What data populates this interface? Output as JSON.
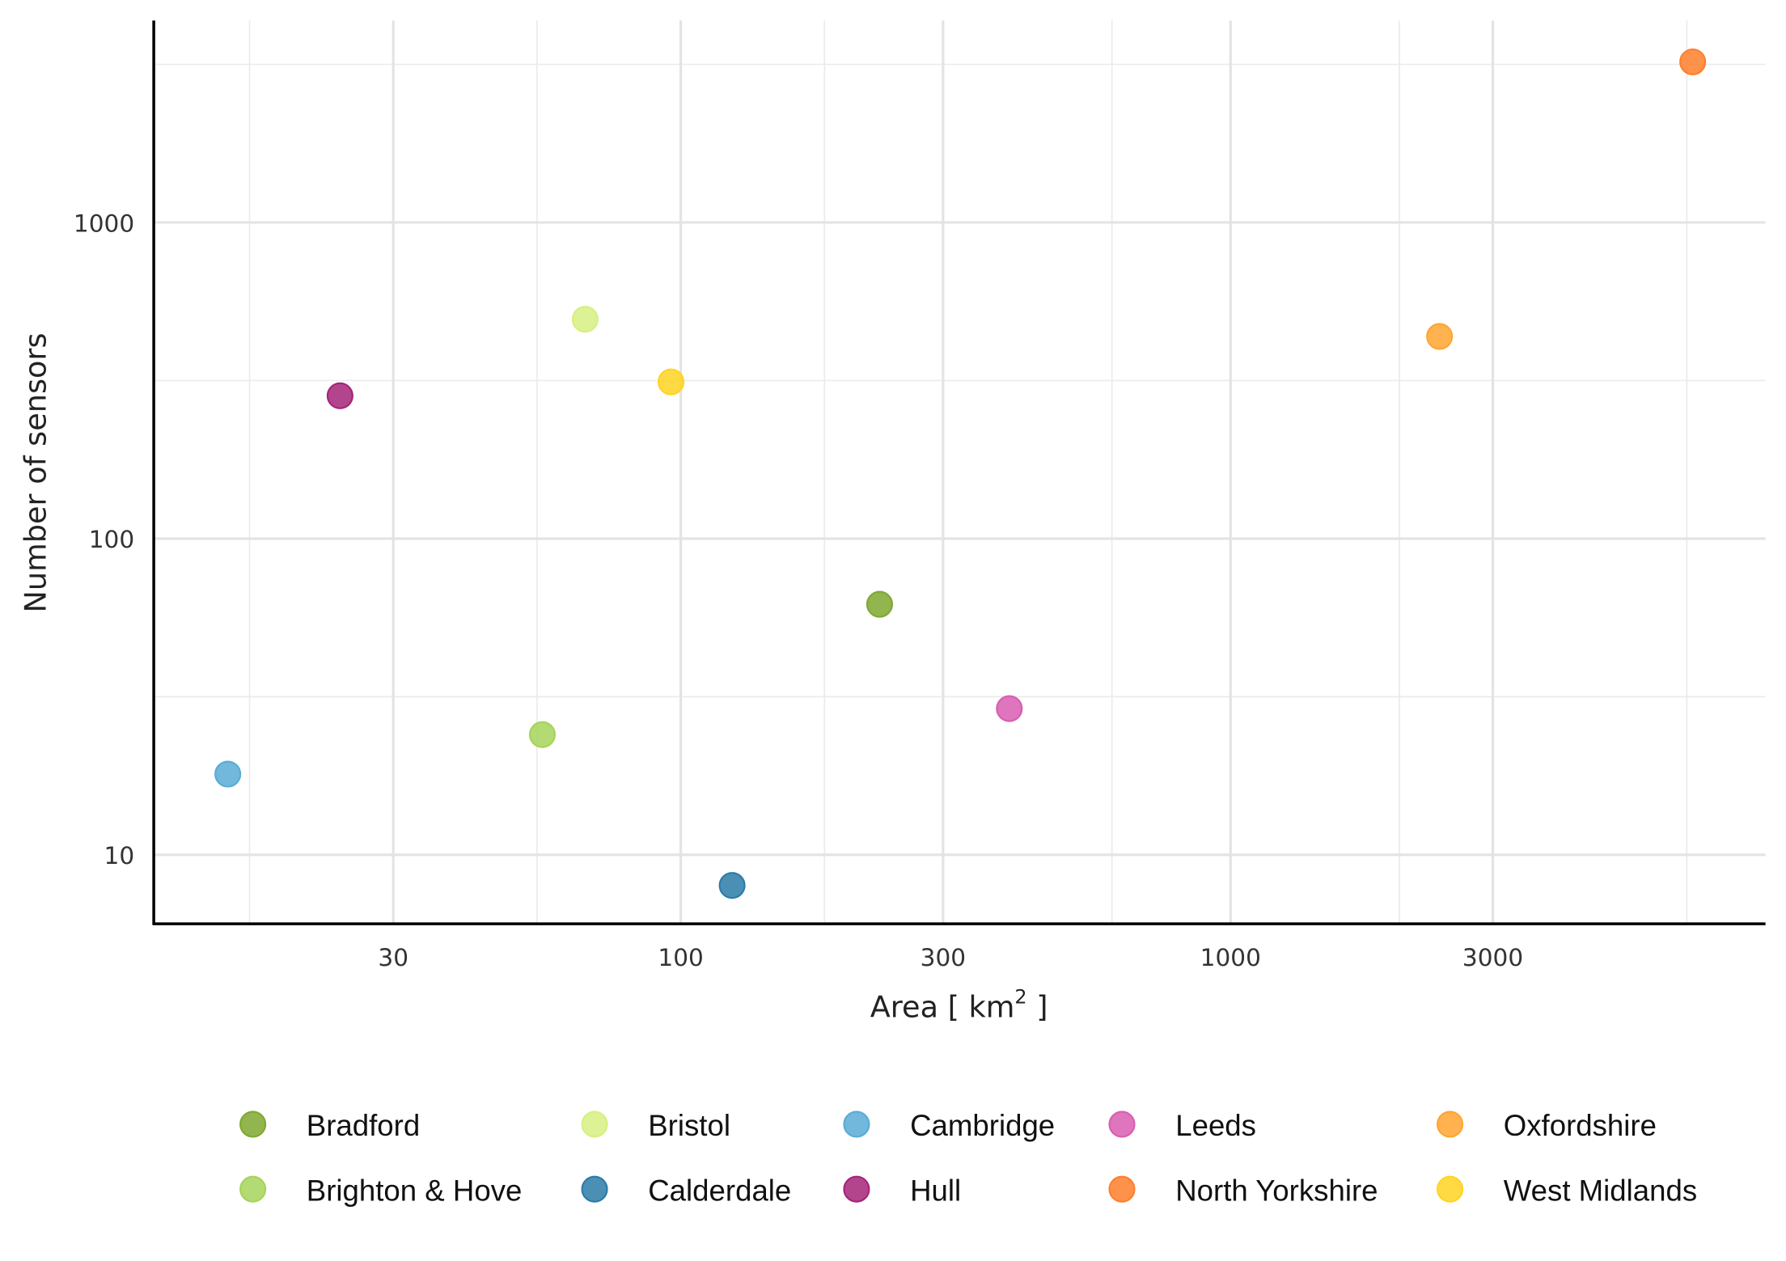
{
  "chart_data": {
    "type": "scatter",
    "xlabel": "Area [ km",
    "xlabel_sup": "2",
    "xlabel_end": " ]",
    "ylabel": "Number of sensors",
    "x_scale": "log10",
    "y_scale": "log10",
    "xlim": [
      11,
      9400
    ],
    "ylim": [
      6,
      4350
    ],
    "x_ticks": [
      30,
      100,
      300,
      1000,
      3000
    ],
    "x_tick_labels": [
      "30",
      "100",
      "300",
      "1000",
      "3000"
    ],
    "y_ticks": [
      10,
      100,
      1000
    ],
    "y_tick_labels": [
      "10",
      "100",
      "1000"
    ],
    "grid": true,
    "legend_position": "bottom",
    "points": [
      {
        "name": "Bradford",
        "x": 230,
        "y": 62,
        "color": "#7fa830"
      },
      {
        "name": "Brighton & Hove",
        "x": 56,
        "y": 24,
        "color": "#a6d35a"
      },
      {
        "name": "Bristol",
        "x": 67,
        "y": 494,
        "color": "#d6f081"
      },
      {
        "name": "Calderdale",
        "x": 124,
        "y": 8,
        "color": "#2b7ba8"
      },
      {
        "name": "Cambridge",
        "x": 15,
        "y": 18,
        "color": "#58acd6"
      },
      {
        "name": "Hull",
        "x": 24,
        "y": 283,
        "color": "#a42478"
      },
      {
        "name": "Leeds",
        "x": 396,
        "y": 29,
        "color": "#d85db2"
      },
      {
        "name": "North Yorkshire",
        "x": 6930,
        "y": 3220,
        "color": "#ff7f2a"
      },
      {
        "name": "Oxfordshire",
        "x": 2400,
        "y": 436,
        "color": "#ffa530"
      },
      {
        "name": "West Midlands",
        "x": 96,
        "y": 313,
        "color": "#ffd422"
      }
    ]
  }
}
